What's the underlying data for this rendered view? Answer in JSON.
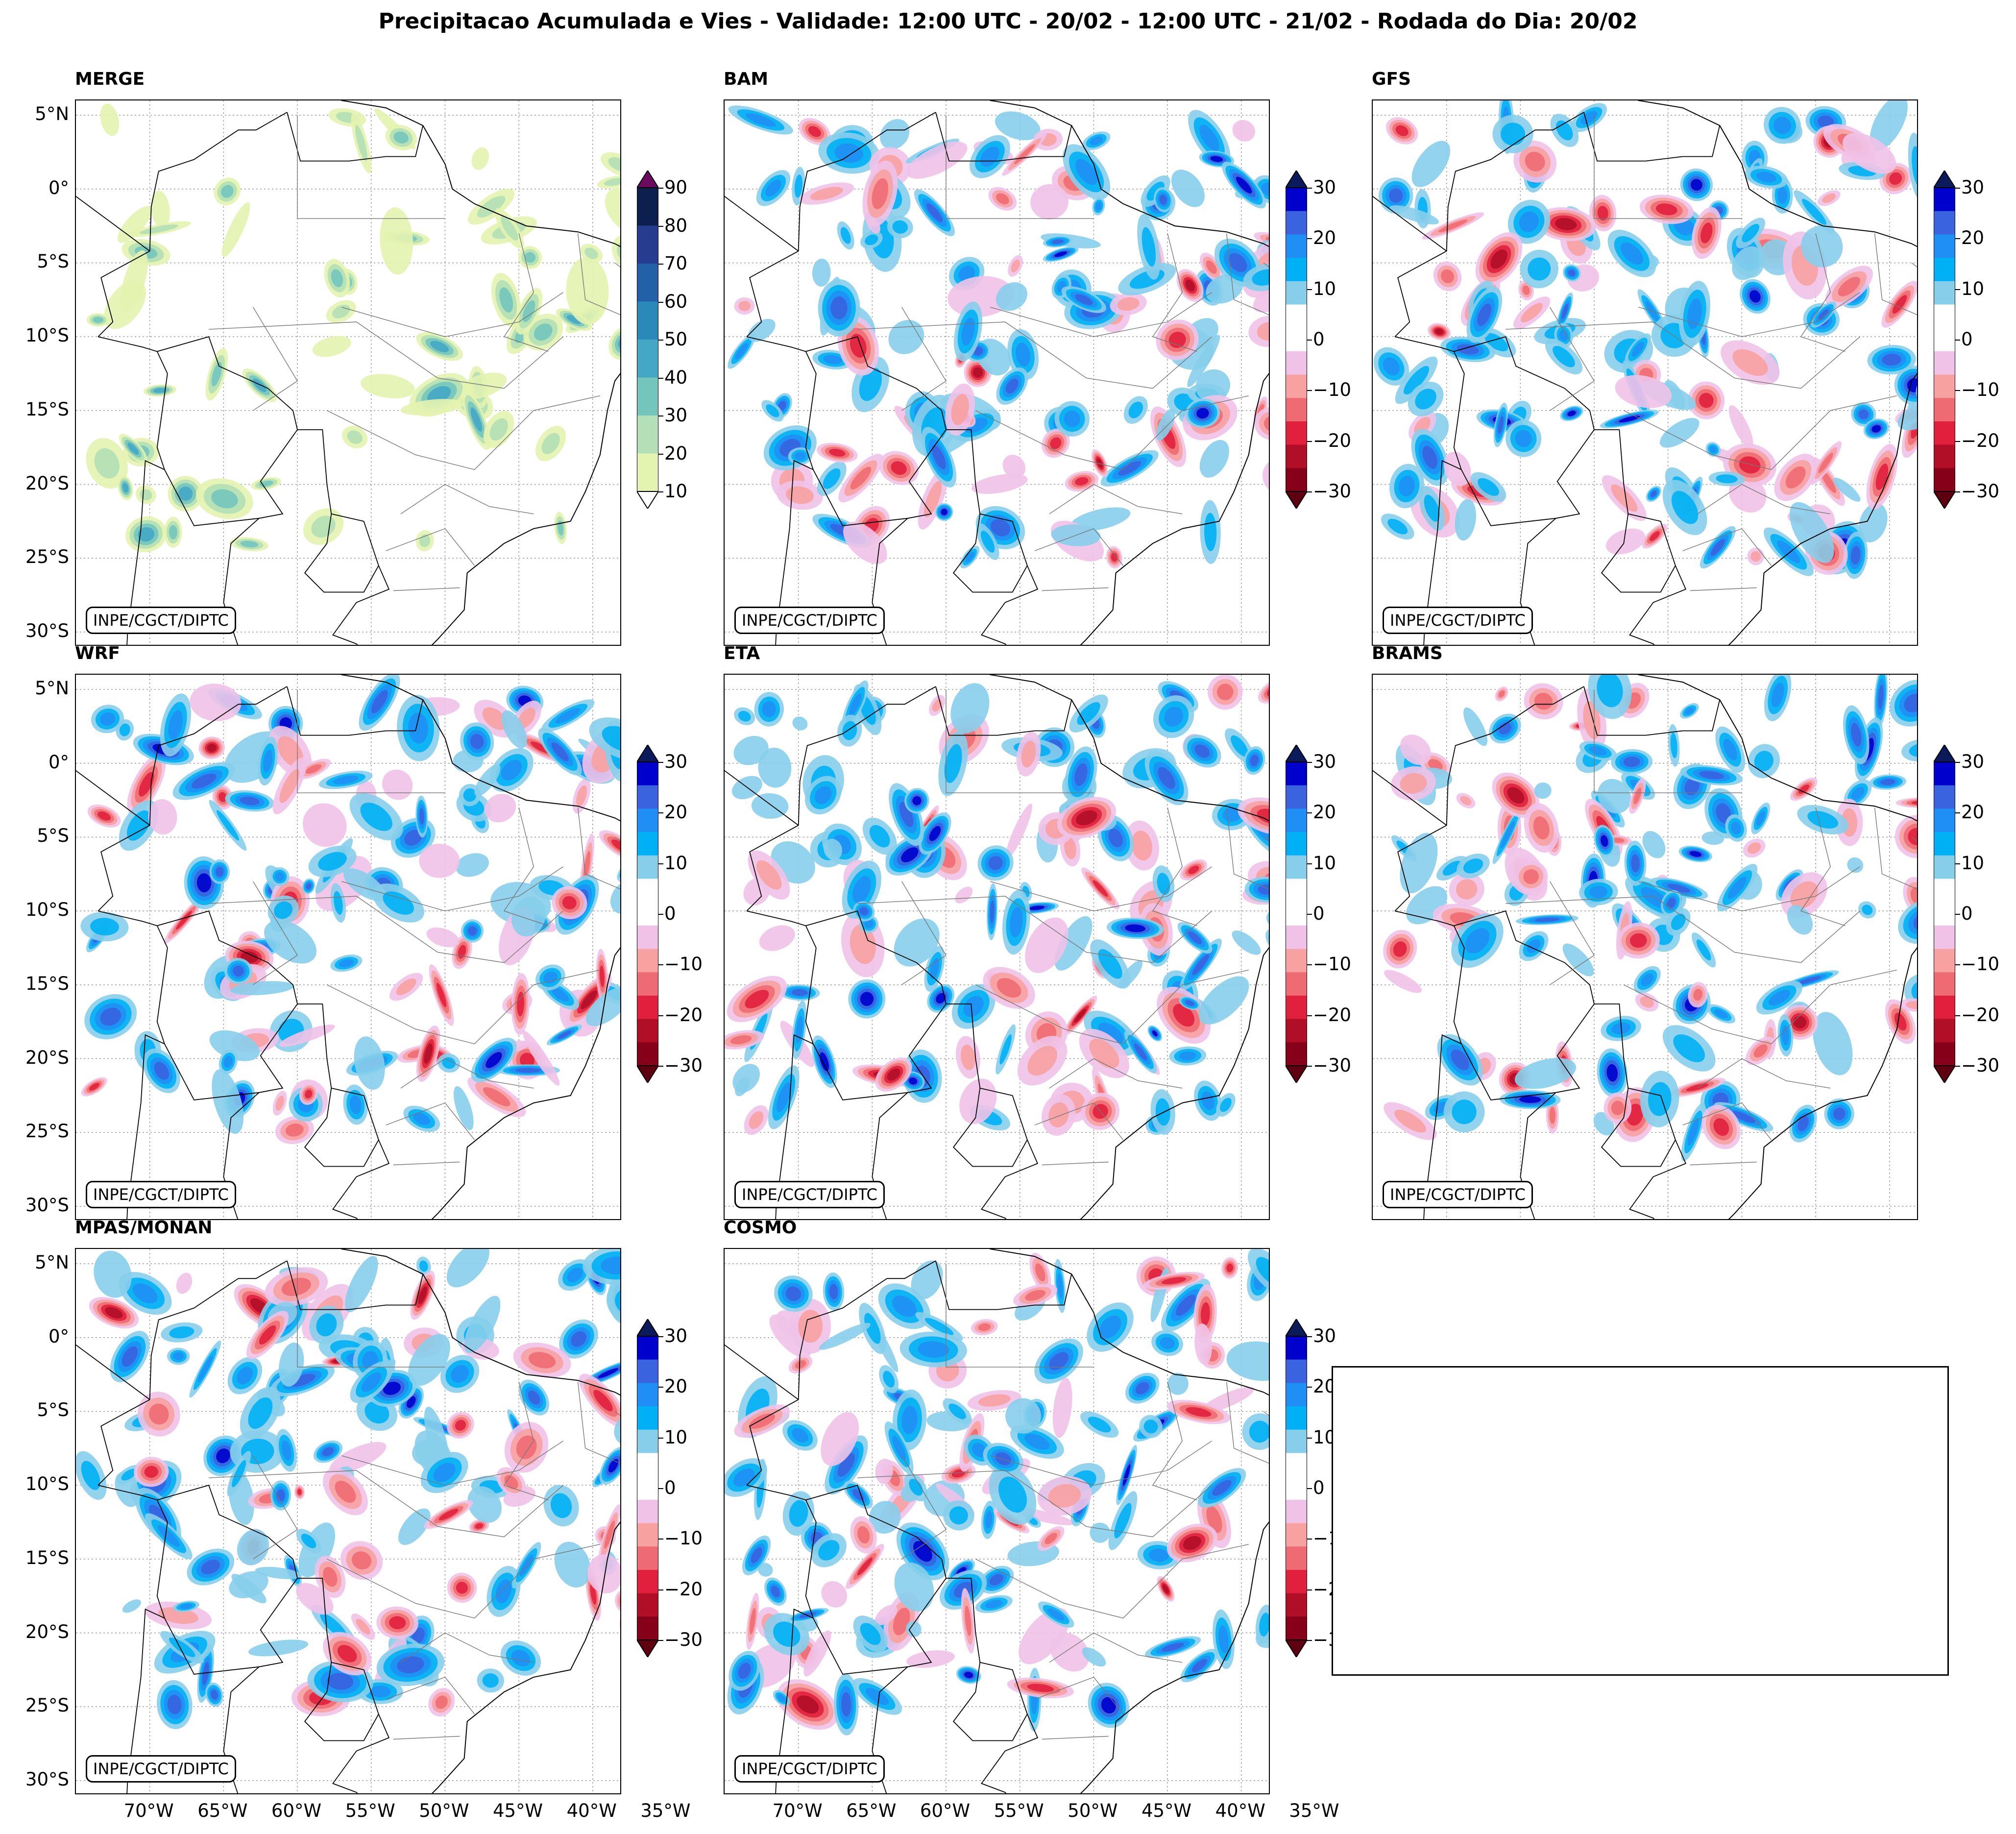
{
  "title": "Precipitacao Acumulada e Vies - Validade: 12:00 UTC - 20/02 - 12:00 UTC - 21/02 - Rodada do Dia: 20/02",
  "credit": "INPE/CGCT/DIPTC",
  "lat_labels": [
    "5°N",
    "0°",
    "5°S",
    "10°S",
    "15°S",
    "20°S",
    "25°S",
    "30°S"
  ],
  "lon_labels": [
    "70°W",
    "65°W",
    "60°W",
    "55°W",
    "50°W",
    "45°W",
    "40°W",
    "35°W"
  ],
  "panels": [
    {
      "name": "MERGE",
      "kind": "precip"
    },
    {
      "name": "BAM",
      "kind": "bias"
    },
    {
      "name": "GFS",
      "kind": "bias"
    },
    {
      "name": "WRF",
      "kind": "bias"
    },
    {
      "name": "ETA",
      "kind": "bias"
    },
    {
      "name": "BRAMS",
      "kind": "bias"
    },
    {
      "name": "MPAS/MONAN",
      "kind": "bias"
    },
    {
      "name": "COSMO",
      "kind": "bias"
    }
  ],
  "precip_scale": {
    "ticks": [
      "90",
      "80",
      "70",
      "60",
      "50",
      "40",
      "30",
      "20",
      "10"
    ],
    "colors": [
      "#0c1f4f",
      "#263c8f",
      "#2260a8",
      "#2b89b9",
      "#44a8c4",
      "#74c6bd",
      "#b3e0b6",
      "#e4f3b0"
    ],
    "top": "#6b0a5e"
  },
  "bias_scale": {
    "ticks": [
      "30",
      "20",
      "10",
      "0",
      "−10",
      "−20",
      "−30"
    ],
    "colors": [
      "#0000cd",
      "#3a63e0",
      "#1f8ff5",
      "#00b0f4",
      "#87ceeb",
      "#ffffff",
      "#ffffff",
      "#f0c2e8",
      "#f7a1a1",
      "#ef6b73",
      "#e0203d",
      "#b10e28",
      "#850018"
    ],
    "top": "#0b1a5a",
    "bottom": "#5e0010"
  },
  "blob_colors": {
    "blue": [
      "#87ceeb",
      "#00b0f4",
      "#1f8ff5",
      "#3a63e0",
      "#0000cd",
      "#0b1a5a"
    ],
    "red": [
      "#f0c2e8",
      "#f7a1a1",
      "#ef6b73",
      "#e0203d",
      "#b10e28",
      "#850018"
    ],
    "merge": [
      "#e4f3b0",
      "#b3e0b6",
      "#74c6bd",
      "#44a8c4",
      "#2260a8"
    ]
  }
}
